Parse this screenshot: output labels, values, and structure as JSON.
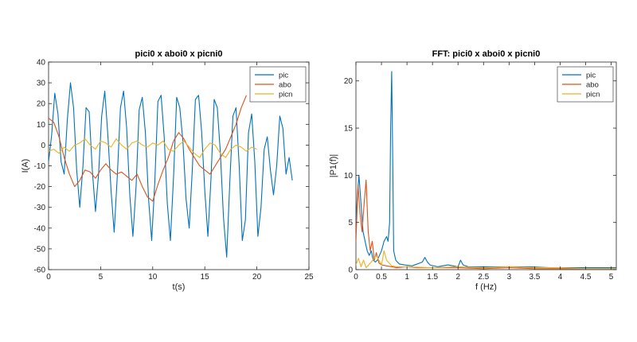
{
  "chart_data": [
    {
      "type": "line",
      "title": "pici0 x aboi0 x picni0",
      "xlabel": "t(s)",
      "ylabel": "I(A)",
      "xlim": [
        0,
        25
      ],
      "ylim": [
        -60,
        40
      ],
      "xticks": [
        "0",
        "5",
        "10",
        "15",
        "20",
        "25"
      ],
      "yticks": [
        "40",
        "30",
        "20",
        "10",
        "0",
        "-10",
        "-20",
        "-30",
        "-40",
        "-50",
        "-60"
      ],
      "grid": false,
      "legend_position": "top-right",
      "series": [
        {
          "name": "pic",
          "color": "#0072BD",
          "x": [
            0,
            0.3,
            0.6,
            0.9,
            1.2,
            1.5,
            1.8,
            2.1,
            2.4,
            2.7,
            3.0,
            3.3,
            3.6,
            3.9,
            4.2,
            4.5,
            4.8,
            5.1,
            5.4,
            5.7,
            6.0,
            6.3,
            6.6,
            6.9,
            7.2,
            7.5,
            7.8,
            8.1,
            8.4,
            8.7,
            9.0,
            9.3,
            9.6,
            9.9,
            10.2,
            10.5,
            10.8,
            11.1,
            11.4,
            11.7,
            12.0,
            12.3,
            12.6,
            12.9,
            13.2,
            13.5,
            13.8,
            14.1,
            14.4,
            14.7,
            15.0,
            15.3,
            15.6,
            15.9,
            16.2,
            16.5,
            16.8,
            17.1,
            17.4,
            17.7,
            18.0,
            18.3,
            18.6,
            18.9,
            19.2,
            19.5,
            19.8,
            20.1,
            20.4,
            20.7,
            21.0,
            21.3,
            21.6,
            21.9,
            22.2,
            22.5,
            22.8,
            23.1,
            23.4
          ],
          "y": [
            -8,
            5,
            25,
            15,
            -8,
            -14,
            12,
            30,
            18,
            -12,
            -30,
            -10,
            18,
            16,
            -12,
            -32,
            -14,
            14,
            26,
            4,
            -22,
            -42,
            -15,
            18,
            26,
            8,
            -24,
            -44,
            -20,
            17,
            23,
            6,
            -26,
            -46,
            -18,
            21,
            24,
            4,
            -28,
            -46,
            -15,
            23,
            18,
            2,
            -26,
            -40,
            -12,
            22,
            24,
            6,
            -22,
            -44,
            -16,
            22,
            18,
            -4,
            -35,
            -54,
            -18,
            14,
            18,
            -10,
            -46,
            -36,
            6,
            15,
            -8,
            -44,
            -30,
            -2,
            4,
            -12,
            -24,
            -10,
            14,
            8,
            -14,
            -6,
            -17
          ]
        },
        {
          "name": "abo",
          "color": "#D95319",
          "x": [
            0,
            0.5,
            1,
            1.5,
            2,
            2.5,
            3,
            3.5,
            4,
            4.5,
            5,
            5.5,
            6,
            6.5,
            7,
            7.5,
            8,
            8.5,
            9,
            9.5,
            10,
            10.5,
            11,
            11.5,
            12,
            12.5,
            13,
            13.5,
            14,
            14.5,
            15,
            15.5,
            16,
            16.5,
            17,
            17.5,
            18,
            18.5,
            19
          ],
          "y": [
            13,
            11,
            4,
            -6,
            -14,
            -20,
            -17,
            -12,
            -13,
            -16,
            -12,
            -9,
            -12,
            -14,
            -13,
            -15,
            -17,
            -14,
            -20,
            -25,
            -27,
            -19,
            -12,
            -6,
            2,
            6,
            3,
            -2,
            -6,
            -10,
            -12,
            -14,
            -10,
            -6,
            -2,
            4,
            10,
            18,
            24
          ]
        },
        {
          "name": "picn",
          "color": "#EDB120",
          "x": [
            0,
            0.5,
            1,
            1.5,
            2,
            2.5,
            3,
            3.5,
            4,
            4.5,
            5,
            5.5,
            6,
            6.5,
            7,
            7.5,
            8,
            8.5,
            9,
            9.5,
            10,
            10.5,
            11,
            11.5,
            12,
            12.5,
            13,
            13.5,
            14,
            14.5,
            15,
            15.5,
            16,
            16.5,
            17,
            17.5,
            18,
            18.5,
            19,
            19.5,
            20
          ],
          "y": [
            -3,
            -2,
            -4,
            -1,
            -3,
            0,
            1,
            3,
            0,
            -2,
            2,
            1,
            -1,
            3,
            0,
            -2,
            1,
            2,
            0,
            -1,
            1,
            0,
            2,
            -2,
            -3,
            0,
            2,
            -1,
            -4,
            -6,
            -2,
            1,
            0,
            -4,
            -6,
            -2,
            0,
            -1,
            -3,
            -1,
            -2
          ]
        }
      ]
    },
    {
      "type": "line",
      "title": "FFT: pici0 x aboi0 x picni0",
      "xlabel": "f (Hz)",
      "ylabel": "|P1(f)|",
      "xlim": [
        0,
        5.1
      ],
      "ylim": [
        0,
        22
      ],
      "xticks": [
        "0",
        "0.5",
        "1",
        "1.5",
        "2",
        "2.5",
        "3",
        "3.5",
        "4",
        "4.5",
        "5"
      ],
      "yticks": [
        "20",
        "15",
        "10",
        "5",
        "0"
      ],
      "grid": false,
      "legend_position": "top-right",
      "series": [
        {
          "name": "pic",
          "color": "#0072BD",
          "x": [
            0,
            0.03,
            0.06,
            0.1,
            0.14,
            0.18,
            0.22,
            0.26,
            0.3,
            0.34,
            0.38,
            0.42,
            0.46,
            0.5,
            0.55,
            0.6,
            0.63,
            0.66,
            0.68,
            0.7,
            0.72,
            0.74,
            0.78,
            0.85,
            0.95,
            1.1,
            1.3,
            1.35,
            1.4,
            1.45,
            1.6,
            1.8,
            2.0,
            2.05,
            2.1,
            2.2,
            2.4,
            2.6,
            3.0,
            3.4,
            3.8,
            4.2,
            4.6,
            5.1
          ],
          "y": [
            5,
            8,
            10,
            7,
            4,
            3,
            2,
            1.5,
            2,
            1,
            0.8,
            1,
            1.5,
            2,
            3,
            3.5,
            3,
            5,
            15,
            21,
            12,
            2,
            1,
            0.6,
            0.5,
            0.4,
            0.8,
            1.3,
            0.8,
            0.5,
            0.3,
            0.5,
            0.3,
            1,
            0.5,
            0.3,
            0.3,
            0.3,
            0.3,
            0.3,
            0.2,
            0.2,
            0.2,
            0.2
          ]
        },
        {
          "name": "abo",
          "color": "#D95319",
          "x": [
            0,
            0.04,
            0.08,
            0.12,
            0.16,
            0.2,
            0.24,
            0.28,
            0.32,
            0.36,
            0.4,
            0.45,
            0.5,
            0.6,
            0.7,
            0.8,
            1,
            1.2,
            1.5,
            2,
            2.5,
            3,
            3.5,
            4,
            4.5,
            5.1
          ],
          "y": [
            3,
            9,
            6,
            4,
            7,
            9.5,
            4,
            2,
            3,
            1,
            1.8,
            0.7,
            0.5,
            0.4,
            0.3,
            0.2,
            0.3,
            0.2,
            0.2,
            0.2,
            0.1,
            0.2,
            0.1,
            0.1,
            0.1,
            0.1
          ]
        },
        {
          "name": "picn",
          "color": "#EDB120",
          "x": [
            0,
            0.05,
            0.1,
            0.15,
            0.2,
            0.3,
            0.4,
            0.5,
            0.55,
            0.6,
            0.7,
            0.8,
            1,
            1.5,
            2,
            2.5,
            3,
            3.5,
            4,
            4.5,
            5.1
          ],
          "y": [
            0.5,
            1.2,
            0.3,
            1,
            0.2,
            0.8,
            1.5,
            0.5,
            2,
            1,
            0.4,
            0.3,
            0.3,
            0.2,
            0.3,
            0.2,
            0.3,
            0.2,
            0.2,
            0.1,
            0.1
          ]
        }
      ]
    }
  ]
}
